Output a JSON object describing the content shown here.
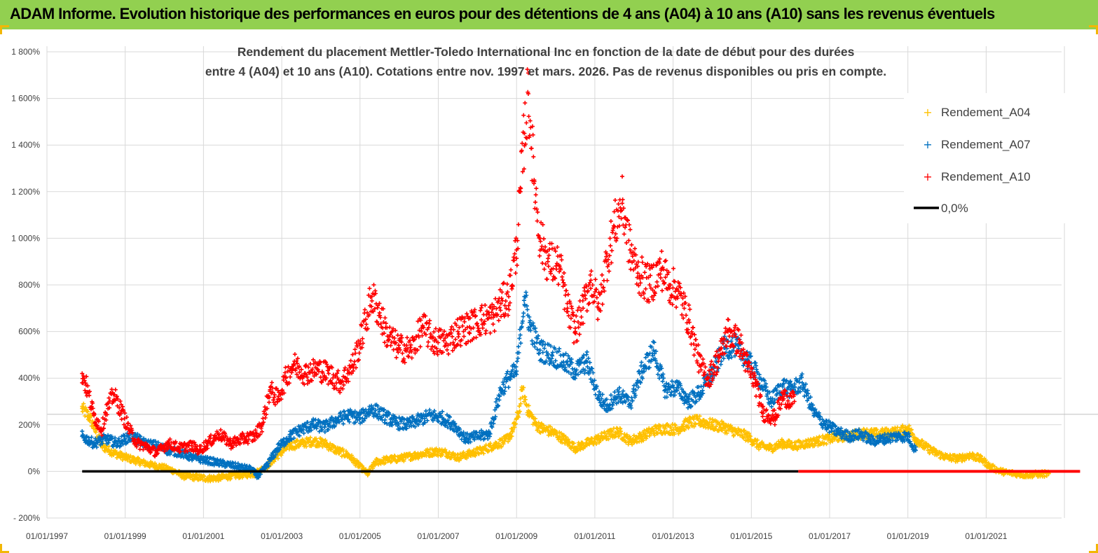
{
  "banner": {
    "title": "ADAM Informe. Evolution historique des performances en euros pour des détentions de 4 ans (A04) à 10 ans (A10) sans les revenus éventuels",
    "background": "#92d050",
    "corner_color": "#f2b705"
  },
  "chart_data": {
    "type": "scatter",
    "title_lines": [
      "Rendement du placement Mettler-Toledo International Inc en fonction de la date de début pour des durées",
      "entre 4 (A04) et 10 ans (A10).  Cotations entre nov. 1997 et mars. 2026.  Pas de revenus disponibles ou pris en compte."
    ],
    "xlabel": "",
    "ylabel": "",
    "x_range": [
      1997.0,
      2023.4
    ],
    "ylim": [
      -200,
      1800
    ],
    "y_ticks": [
      {
        "value": 1800,
        "label": "1 800%"
      },
      {
        "value": 1600,
        "label": "1 600%"
      },
      {
        "value": 1400,
        "label": "1 400%"
      },
      {
        "value": 1200,
        "label": "1 200%"
      },
      {
        "value": 1000,
        "label": "1 000%"
      },
      {
        "value": 800,
        "label": "800%"
      },
      {
        "value": 600,
        "label": "600%"
      },
      {
        "value": 400,
        "label": "400%"
      },
      {
        "value": 200,
        "label": "200%"
      },
      {
        "value": 0,
        "label": "0%"
      },
      {
        "value": -200,
        "label": "- 200%"
      }
    ],
    "x_ticks": [
      {
        "value": 1997,
        "label": "01/01/1997"
      },
      {
        "value": 1999,
        "label": "01/01/1999"
      },
      {
        "value": 2001,
        "label": "01/01/2001"
      },
      {
        "value": 2003,
        "label": "01/01/2003"
      },
      {
        "value": 2005,
        "label": "01/01/2005"
      },
      {
        "value": 2007,
        "label": "01/01/2007"
      },
      {
        "value": 2009,
        "label": "01/01/2009"
      },
      {
        "value": 2011,
        "label": "01/01/2011"
      },
      {
        "value": 2013,
        "label": "01/01/2013"
      },
      {
        "value": 2015,
        "label": "01/01/2015"
      },
      {
        "value": 2017,
        "label": "01/01/2017"
      },
      {
        "value": 2019,
        "label": "01/01/2019"
      },
      {
        "value": 2021,
        "label": "01/01/2021"
      }
    ],
    "x_gridlines_years": [
      1997,
      1999,
      2001,
      2003,
      2005,
      2007,
      2009,
      2011,
      2013,
      2015,
      2017,
      2019,
      2021,
      2023
    ],
    "grid": true,
    "legend_position": "top-right",
    "series": [
      {
        "name": "Rendement_A04",
        "color": "#ffc000",
        "marker": "+",
        "points": [
          [
            1997.9,
            270
          ],
          [
            1998.1,
            230
          ],
          [
            1998.4,
            110
          ],
          [
            1998.7,
            80
          ],
          [
            1999.0,
            60
          ],
          [
            1999.3,
            45
          ],
          [
            1999.6,
            30
          ],
          [
            1999.9,
            20
          ],
          [
            2000.2,
            5
          ],
          [
            2000.5,
            -20
          ],
          [
            2000.8,
            -25
          ],
          [
            2001.1,
            -30
          ],
          [
            2001.4,
            -28
          ],
          [
            2001.7,
            -20
          ],
          [
            2002.0,
            -15
          ],
          [
            2002.3,
            -10
          ],
          [
            2002.6,
            20
          ],
          [
            2002.9,
            70
          ],
          [
            2003.2,
            110
          ],
          [
            2003.5,
            120
          ],
          [
            2003.8,
            130
          ],
          [
            2004.1,
            120
          ],
          [
            2004.4,
            90
          ],
          [
            2004.7,
            70
          ],
          [
            2005.0,
            20
          ],
          [
            2005.2,
            -10
          ],
          [
            2005.4,
            40
          ],
          [
            2005.7,
            50
          ],
          [
            2006.0,
            55
          ],
          [
            2006.3,
            65
          ],
          [
            2006.6,
            75
          ],
          [
            2006.9,
            85
          ],
          [
            2007.2,
            80
          ],
          [
            2007.5,
            60
          ],
          [
            2007.8,
            75
          ],
          [
            2008.1,
            90
          ],
          [
            2008.4,
            110
          ],
          [
            2008.7,
            130
          ],
          [
            2008.9,
            170
          ],
          [
            2009.05,
            250
          ],
          [
            2009.15,
            350
          ],
          [
            2009.3,
            260
          ],
          [
            2009.5,
            200
          ],
          [
            2009.7,
            180
          ],
          [
            2009.9,
            170
          ],
          [
            2010.2,
            140
          ],
          [
            2010.5,
            100
          ],
          [
            2010.8,
            120
          ],
          [
            2011.1,
            140
          ],
          [
            2011.4,
            160
          ],
          [
            2011.6,
            170
          ],
          [
            2011.9,
            130
          ],
          [
            2012.2,
            150
          ],
          [
            2012.5,
            175
          ],
          [
            2012.8,
            185
          ],
          [
            2013.1,
            180
          ],
          [
            2013.4,
            210
          ],
          [
            2013.7,
            215
          ],
          [
            2014.0,
            200
          ],
          [
            2014.3,
            190
          ],
          [
            2014.6,
            170
          ],
          [
            2014.9,
            150
          ],
          [
            2015.2,
            110
          ],
          [
            2015.5,
            100
          ],
          [
            2015.8,
            120
          ],
          [
            2016.1,
            110
          ],
          [
            2016.4,
            120
          ],
          [
            2016.7,
            130
          ],
          [
            2017.0,
            140
          ],
          [
            2017.3,
            150
          ],
          [
            2017.6,
            155
          ],
          [
            2017.9,
            165
          ],
          [
            2018.2,
            160
          ],
          [
            2018.5,
            165
          ],
          [
            2018.8,
            170
          ],
          [
            2019.0,
            185
          ],
          [
            2019.2,
            140
          ],
          [
            2019.4,
            110
          ],
          [
            2019.7,
            80
          ],
          [
            2020.0,
            60
          ],
          [
            2020.3,
            55
          ],
          [
            2020.6,
            70
          ],
          [
            2020.9,
            50
          ],
          [
            2021.1,
            20
          ],
          [
            2021.3,
            5
          ],
          [
            2021.5,
            -5
          ],
          [
            2021.8,
            -10
          ],
          [
            2022.0,
            -15
          ],
          [
            2022.3,
            -12
          ],
          [
            2022.6,
            -10
          ]
        ]
      },
      {
        "name": "Rendement_A07",
        "color": "#0070c0",
        "marker": "+",
        "points": [
          [
            1997.9,
            150
          ],
          [
            1998.2,
            120
          ],
          [
            1998.5,
            140
          ],
          [
            1998.8,
            120
          ],
          [
            1999.0,
            140
          ],
          [
            1999.2,
            150
          ],
          [
            1999.5,
            120
          ],
          [
            1999.8,
            110
          ],
          [
            2000.1,
            90
          ],
          [
            2000.4,
            80
          ],
          [
            2000.7,
            60
          ],
          [
            2001.0,
            50
          ],
          [
            2001.3,
            40
          ],
          [
            2001.6,
            30
          ],
          [
            2001.9,
            20
          ],
          [
            2002.2,
            10
          ],
          [
            2002.4,
            -20
          ],
          [
            2002.6,
            20
          ],
          [
            2002.9,
            100
          ],
          [
            2003.2,
            150
          ],
          [
            2003.5,
            180
          ],
          [
            2003.8,
            200
          ],
          [
            2004.1,
            190
          ],
          [
            2004.4,
            220
          ],
          [
            2004.7,
            240
          ],
          [
            2005.0,
            230
          ],
          [
            2005.3,
            270
          ],
          [
            2005.6,
            240
          ],
          [
            2005.9,
            210
          ],
          [
            2006.2,
            200
          ],
          [
            2006.5,
            220
          ],
          [
            2006.8,
            240
          ],
          [
            2007.1,
            230
          ],
          [
            2007.4,
            200
          ],
          [
            2007.7,
            140
          ],
          [
            2008.0,
            150
          ],
          [
            2008.3,
            160
          ],
          [
            2008.6,
            350
          ],
          [
            2008.8,
            400
          ],
          [
            2009.0,
            430
          ],
          [
            2009.2,
            750
          ],
          [
            2009.35,
            620
          ],
          [
            2009.6,
            520
          ],
          [
            2009.9,
            500
          ],
          [
            2010.2,
            470
          ],
          [
            2010.5,
            430
          ],
          [
            2010.8,
            470
          ],
          [
            2011.1,
            320
          ],
          [
            2011.3,
            280
          ],
          [
            2011.6,
            330
          ],
          [
            2011.9,
            290
          ],
          [
            2012.2,
            430
          ],
          [
            2012.5,
            520
          ],
          [
            2012.8,
            350
          ],
          [
            2013.1,
            360
          ],
          [
            2013.4,
            300
          ],
          [
            2013.7,
            340
          ],
          [
            2014.0,
            420
          ],
          [
            2014.3,
            530
          ],
          [
            2014.6,
            540
          ],
          [
            2014.9,
            480
          ],
          [
            2015.2,
            400
          ],
          [
            2015.5,
            300
          ],
          [
            2015.8,
            370
          ],
          [
            2016.0,
            350
          ],
          [
            2016.3,
            380
          ],
          [
            2016.6,
            250
          ],
          [
            2016.9,
            200
          ],
          [
            2017.2,
            170
          ],
          [
            2017.5,
            150
          ],
          [
            2017.8,
            160
          ],
          [
            2018.1,
            130
          ],
          [
            2018.4,
            140
          ],
          [
            2018.7,
            150
          ],
          [
            2019.0,
            150
          ],
          [
            2019.2,
            90
          ]
        ]
      },
      {
        "name": "Rendement_A10",
        "color": "#ff0000",
        "marker": "+",
        "points": [
          [
            1997.9,
            420
          ],
          [
            1998.0,
            370
          ],
          [
            1998.2,
            240
          ],
          [
            1998.4,
            180
          ],
          [
            1998.5,
            250
          ],
          [
            1998.7,
            330
          ],
          [
            1998.9,
            260
          ],
          [
            1999.1,
            180
          ],
          [
            1999.3,
            120
          ],
          [
            1999.5,
            110
          ],
          [
            1999.8,
            80
          ],
          [
            2000.1,
            120
          ],
          [
            2000.4,
            100
          ],
          [
            2000.7,
            110
          ],
          [
            2000.9,
            90
          ],
          [
            2001.1,
            120
          ],
          [
            2001.4,
            160
          ],
          [
            2001.7,
            120
          ],
          [
            2002.0,
            140
          ],
          [
            2002.3,
            150
          ],
          [
            2002.5,
            200
          ],
          [
            2002.7,
            350
          ],
          [
            2002.9,
            310
          ],
          [
            2003.1,
            400
          ],
          [
            2003.3,
            460
          ],
          [
            2003.6,
            420
          ],
          [
            2003.9,
            440
          ],
          [
            2004.2,
            420
          ],
          [
            2004.5,
            380
          ],
          [
            2004.8,
            450
          ],
          [
            2005.0,
            550
          ],
          [
            2005.3,
            750
          ],
          [
            2005.5,
            680
          ],
          [
            2005.7,
            580
          ],
          [
            2006.0,
            530
          ],
          [
            2006.3,
            520
          ],
          [
            2006.6,
            620
          ],
          [
            2006.9,
            560
          ],
          [
            2007.2,
            550
          ],
          [
            2007.5,
            600
          ],
          [
            2007.8,
            620
          ],
          [
            2008.1,
            650
          ],
          [
            2008.4,
            660
          ],
          [
            2008.6,
            720
          ],
          [
            2008.8,
            750
          ],
          [
            2009.0,
            950
          ],
          [
            2009.1,
            1200
          ],
          [
            2009.2,
            1450
          ],
          [
            2009.3,
            1620
          ],
          [
            2009.45,
            1250
          ],
          [
            2009.6,
            1000
          ],
          [
            2009.8,
            900
          ],
          [
            2010.1,
            880
          ],
          [
            2010.3,
            700
          ],
          [
            2010.5,
            600
          ],
          [
            2010.7,
            700
          ],
          [
            2010.9,
            820
          ],
          [
            2011.1,
            700
          ],
          [
            2011.3,
            900
          ],
          [
            2011.5,
            1050
          ],
          [
            2011.7,
            1150
          ],
          [
            2011.9,
            950
          ],
          [
            2012.1,
            850
          ],
          [
            2012.4,
            800
          ],
          [
            2012.7,
            870
          ],
          [
            2012.9,
            800
          ],
          [
            2013.1,
            780
          ],
          [
            2013.4,
            650
          ],
          [
            2013.7,
            450
          ],
          [
            2013.9,
            400
          ],
          [
            2014.2,
            500
          ],
          [
            2014.4,
            600
          ],
          [
            2014.7,
            550
          ],
          [
            2014.9,
            450
          ],
          [
            2015.1,
            380
          ],
          [
            2015.3,
            250
          ],
          [
            2015.6,
            230
          ],
          [
            2015.8,
            320
          ],
          [
            2016.1,
            300
          ]
        ]
      },
      {
        "name": "0,0%",
        "color": "#000000",
        "type": "line",
        "points": [
          [
            1997.9,
            0
          ],
          [
            2016.2,
            0
          ]
        ]
      },
      {
        "name": "A10_zero_band",
        "color": "#ff0000",
        "type": "line",
        "points": [
          [
            2016.2,
            0
          ],
          [
            2023.4,
            0
          ]
        ]
      }
    ],
    "legend": [
      {
        "label": "Rendement_A04",
        "color": "#ffc000",
        "marker": "+"
      },
      {
        "label": "Rendement_A07",
        "color": "#0070c0",
        "marker": "+"
      },
      {
        "label": "Rendement_A10",
        "color": "#ff0000",
        "marker": "+"
      },
      {
        "label": "0,0%",
        "color": "#000000",
        "marker": "line"
      }
    ]
  }
}
